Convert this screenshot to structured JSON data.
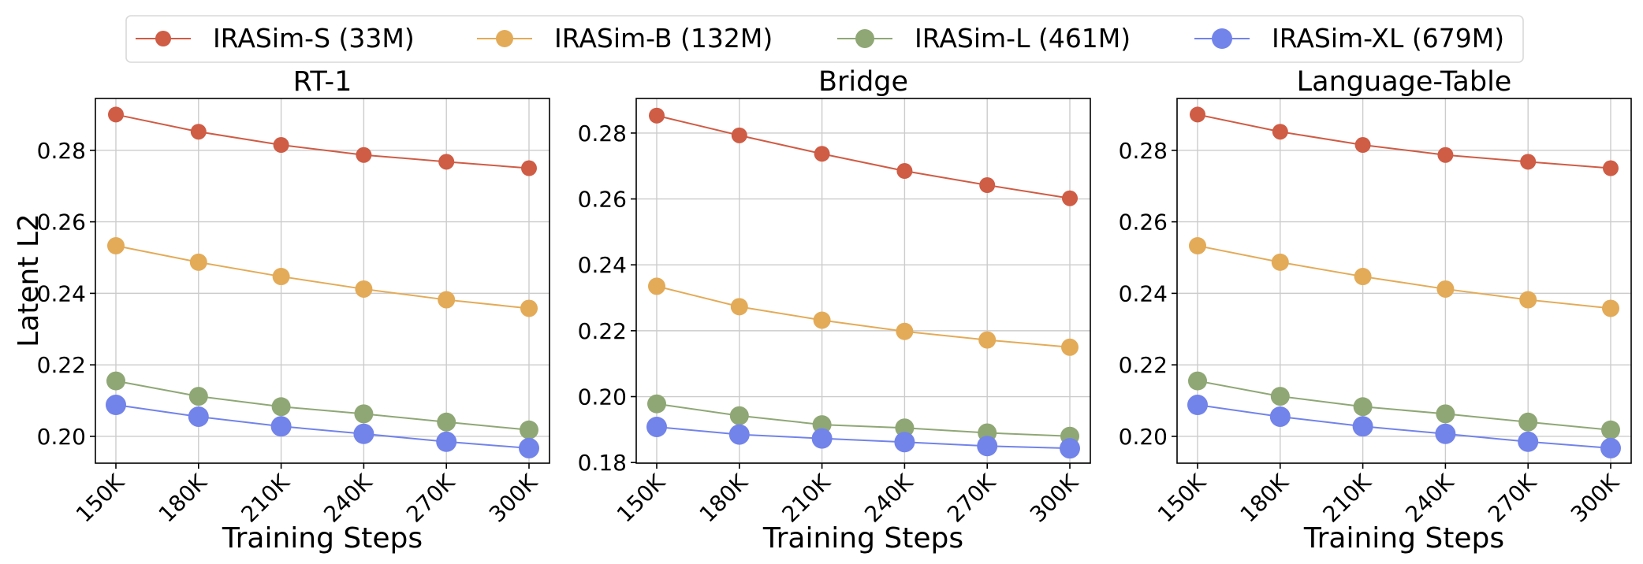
{
  "figure": {
    "legend_placement": "top-center",
    "shared_ylabel": "Latent L2",
    "shared_xlabel": "Training Steps"
  },
  "chart_data": [
    {
      "type": "line",
      "title": "RT-1",
      "xlabel": "Training Steps",
      "ylabel": "Latent L2",
      "categories": [
        "150K",
        "180K",
        "210K",
        "240K",
        "270K",
        "300K"
      ],
      "ylim": [
        0.1925,
        0.2945
      ],
      "yticks": [
        "0.20",
        "0.22",
        "0.24",
        "0.26",
        "0.28"
      ],
      "grid": true,
      "series": [
        {
          "name": "IRASim-S (33M)",
          "color": "#cf5c45",
          "values": [
            0.29,
            0.2852,
            0.2815,
            0.2787,
            0.2768,
            0.275
          ]
        },
        {
          "name": "IRASim-B (132M)",
          "color": "#e3ab58",
          "values": [
            0.2533,
            0.2487,
            0.2447,
            0.2412,
            0.2382,
            0.2358
          ]
        },
        {
          "name": "IRASim-L (461M)",
          "color": "#8fa775",
          "values": [
            0.2155,
            0.2112,
            0.2083,
            0.2063,
            0.204,
            0.2018
          ]
        },
        {
          "name": "IRASim-XL (679M)",
          "color": "#7283ea",
          "values": [
            0.2088,
            0.2055,
            0.2028,
            0.2007,
            0.1985,
            0.1967
          ]
        }
      ]
    },
    {
      "type": "line",
      "title": "Bridge",
      "xlabel": "Training Steps",
      "ylabel": "",
      "categories": [
        "150K",
        "180K",
        "210K",
        "240K",
        "270K",
        "300K"
      ],
      "ylim": [
        0.1798,
        0.2905
      ],
      "yticks": [
        "0.18",
        "0.20",
        "0.22",
        "0.24",
        "0.26",
        "0.28"
      ],
      "grid": true,
      "series": [
        {
          "name": "IRASim-S (33M)",
          "color": "#cf5c45",
          "values": [
            0.2853,
            0.2793,
            0.2737,
            0.2685,
            0.2642,
            0.2602
          ]
        },
        {
          "name": "IRASim-B (132M)",
          "color": "#e3ab58",
          "values": [
            0.2335,
            0.2273,
            0.2232,
            0.2198,
            0.2172,
            0.215
          ]
        },
        {
          "name": "IRASim-L (461M)",
          "color": "#8fa775",
          "values": [
            0.1978,
            0.1942,
            0.1915,
            0.1905,
            0.189,
            0.188
          ]
        },
        {
          "name": "IRASim-XL (679M)",
          "color": "#7283ea",
          "values": [
            0.1908,
            0.1885,
            0.1873,
            0.1862,
            0.185,
            0.1843
          ]
        }
      ]
    },
    {
      "type": "line",
      "title": "Language-Table",
      "xlabel": "Training Steps",
      "ylabel": "",
      "categories": [
        "150K",
        "180K",
        "210K",
        "240K",
        "270K",
        "300K"
      ],
      "ylim": [
        0.1925,
        0.2945
      ],
      "yticks": [
        "0.20",
        "0.22",
        "0.24",
        "0.26",
        "0.28"
      ],
      "grid": true,
      "series": [
        {
          "name": "IRASim-S (33M)",
          "color": "#cf5c45",
          "values": [
            0.29,
            0.2852,
            0.2815,
            0.2787,
            0.2768,
            0.275
          ]
        },
        {
          "name": "IRASim-B (132M)",
          "color": "#e3ab58",
          "values": [
            0.2533,
            0.2487,
            0.2447,
            0.2412,
            0.2382,
            0.2358
          ]
        },
        {
          "name": "IRASim-L (461M)",
          "color": "#8fa775",
          "values": [
            0.2155,
            0.2112,
            0.2083,
            0.2063,
            0.204,
            0.2018
          ]
        },
        {
          "name": "IRASim-XL (679M)",
          "color": "#7283ea",
          "values": [
            0.2088,
            0.2055,
            0.2028,
            0.2007,
            0.1985,
            0.1967
          ]
        }
      ]
    }
  ]
}
